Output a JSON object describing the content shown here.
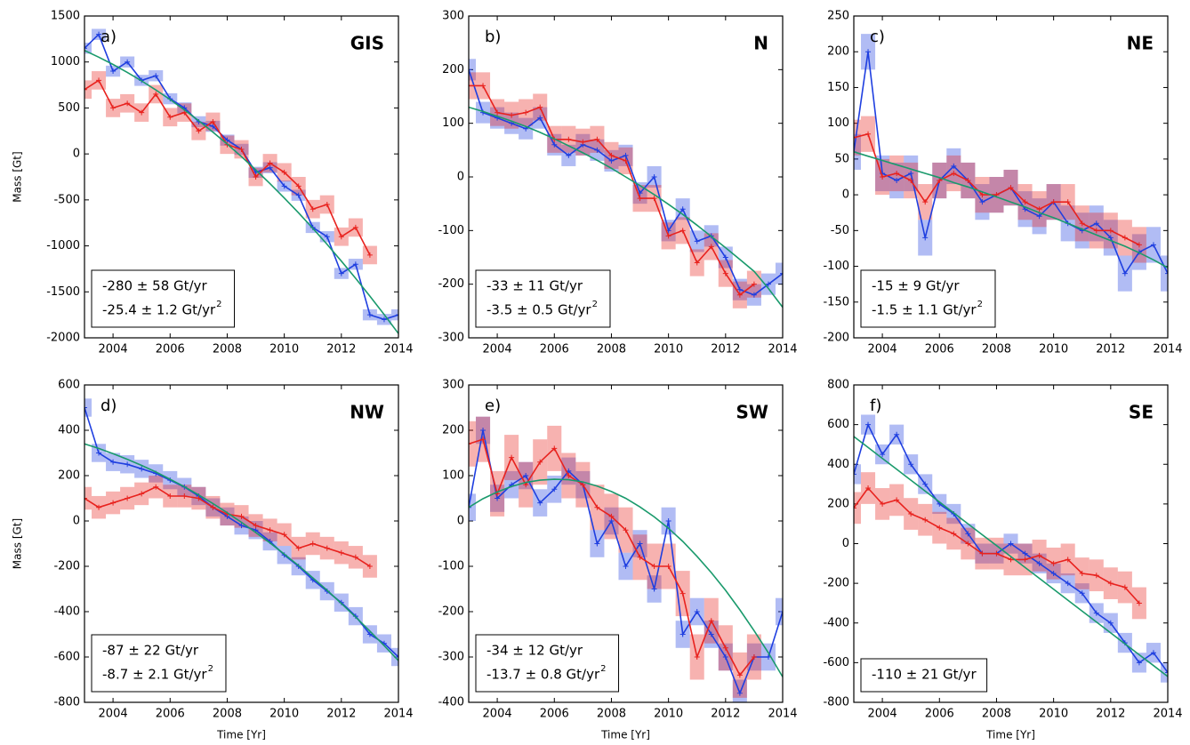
{
  "chart_data": [
    {
      "type": "line",
      "panel_label": "a)",
      "title": "GIS",
      "ylabel": "Mass [Gt]",
      "x": [
        2003,
        2003.5,
        2004,
        2004.5,
        2005,
        2005.5,
        2006,
        2006.5,
        2007,
        2007.5,
        2008,
        2008.5,
        2009,
        2009.5,
        2010,
        2010.5,
        2011,
        2011.5,
        2012,
        2012.5,
        2013,
        2013.5,
        2014
      ],
      "xlim": [
        2003,
        2014
      ],
      "xticks": [
        2004,
        2006,
        2008,
        2010,
        2012,
        2014
      ],
      "ylim": [
        -2000,
        1500
      ],
      "yticks": [
        -2000,
        -1500,
        -1000,
        -500,
        0,
        500,
        1000,
        1500
      ],
      "series": [
        {
          "color": "#1f3fe0",
          "error": 60,
          "values": [
            1150,
            1300,
            900,
            1000,
            800,
            850,
            600,
            500,
            350,
            300,
            150,
            50,
            -200,
            -150,
            -350,
            -450,
            -800,
            -900,
            -1300,
            -1200,
            -1750,
            -1800,
            -1750
          ]
        },
        {
          "color": "#e8221e",
          "error": 100,
          "values": [
            700,
            800,
            500,
            550,
            450,
            650,
            400,
            450,
            250,
            350,
            100,
            50,
            -250,
            -100,
            -200,
            -350,
            -600,
            -550,
            -900,
            -800,
            -1100,
            null,
            null
          ]
        },
        {
          "color": "#1a9a6c",
          "values": [
            1126,
            1052,
            973,
            887,
            794,
            696,
            591,
            479,
            361,
            237,
            107,
            -30,
            -173,
            -323,
            -479,
            -641,
            -809,
            -984,
            -1166,
            -1353,
            -1547,
            -1748,
            -1954
          ]
        }
      ],
      "annotations": [
        {
          "text": "-280 ± 58 Gt/yr"
        },
        {
          "text": "-25.4 ± 1.2 Gt/yr",
          "sup": "2"
        }
      ]
    },
    {
      "type": "line",
      "panel_label": "b)",
      "title": "N",
      "x": [
        2003,
        2003.5,
        2004,
        2004.5,
        2005,
        2005.5,
        2006,
        2006.5,
        2007,
        2007.5,
        2008,
        2008.5,
        2009,
        2009.5,
        2010,
        2010.5,
        2011,
        2011.5,
        2012,
        2012.5,
        2013,
        2013.5,
        2014
      ],
      "xlim": [
        2003,
        2014
      ],
      "xticks": [
        2004,
        2006,
        2008,
        2010,
        2012,
        2014
      ],
      "ylim": [
        -300,
        300
      ],
      "yticks": [
        -300,
        -200,
        -100,
        0,
        100,
        200,
        300
      ],
      "series": [
        {
          "color": "#1f3fe0",
          "error": 20,
          "values": [
            200,
            120,
            110,
            100,
            90,
            110,
            60,
            40,
            60,
            50,
            30,
            40,
            -30,
            0,
            -100,
            -60,
            -120,
            -110,
            -150,
            -210,
            -220,
            -200,
            -180
          ]
        },
        {
          "color": "#e8221e",
          "error": 25,
          "values": [
            170,
            170,
            120,
            115,
            120,
            130,
            70,
            70,
            65,
            70,
            40,
            30,
            -40,
            -40,
            -110,
            -100,
            -160,
            -130,
            -180,
            -220,
            -200,
            null,
            null
          ]
        },
        {
          "color": "#1a9a6c",
          "values": [
            130,
            122,
            113,
            104,
            94,
            83,
            71,
            58,
            45,
            31,
            16,
            0,
            -16,
            -33,
            -51,
            -70,
            -90,
            -111,
            -132,
            -154,
            -176,
            -208,
            -243
          ]
        }
      ],
      "annotations": [
        {
          "text": "-33 ± 11 Gt/yr"
        },
        {
          "text": "-3.5 ± 0.5 Gt/yr",
          "sup": "2"
        }
      ]
    },
    {
      "type": "line",
      "panel_label": "c)",
      "title": "NE",
      "x": [
        2003,
        2003.5,
        2004,
        2004.5,
        2005,
        2005.5,
        2006,
        2006.5,
        2007,
        2007.5,
        2008,
        2008.5,
        2009,
        2009.5,
        2010,
        2010.5,
        2011,
        2011.5,
        2012,
        2012.5,
        2013,
        2013.5,
        2014
      ],
      "xlim": [
        2003,
        2014
      ],
      "xticks": [
        2004,
        2006,
        2008,
        2010,
        2012,
        2014
      ],
      "ylim": [
        -200,
        250
      ],
      "yticks": [
        -200,
        -150,
        -100,
        -50,
        0,
        50,
        100,
        150,
        200,
        250
      ],
      "series": [
        {
          "color": "#1f3fe0",
          "error": 25,
          "values": [
            60,
            200,
            30,
            20,
            30,
            -60,
            20,
            40,
            20,
            -10,
            0,
            10,
            -20,
            -30,
            -10,
            -40,
            -50,
            -40,
            -60,
            -110,
            -80,
            -70,
            -110
          ]
        },
        {
          "color": "#e8221e",
          "error": 25,
          "values": [
            80,
            85,
            25,
            30,
            20,
            -10,
            20,
            30,
            20,
            0,
            0,
            10,
            -10,
            -20,
            -10,
            -10,
            -40,
            -50,
            -50,
            -60,
            -70,
            null,
            null
          ]
        },
        {
          "color": "#1a9a6c",
          "values": [
            60,
            54,
            48,
            42,
            36,
            30,
            24,
            17,
            11,
            4,
            -3,
            -10,
            -17,
            -25,
            -32,
            -40,
            -48,
            -56,
            -64,
            -72,
            -81,
            -91,
            -102
          ]
        }
      ],
      "annotations": [
        {
          "text": "-15 ±  9 Gt/yr"
        },
        {
          "text": "-1.5 ± 1.1 Gt/yr",
          "sup": "2"
        }
      ]
    },
    {
      "type": "line",
      "panel_label": "d)",
      "title": "NW",
      "ylabel": "Mass [Gt]",
      "xlabel": "Time [Yr]",
      "x": [
        2003,
        2003.5,
        2004,
        2004.5,
        2005,
        2005.5,
        2006,
        2006.5,
        2007,
        2007.5,
        2008,
        2008.5,
        2009,
        2009.5,
        2010,
        2010.5,
        2011,
        2011.5,
        2012,
        2012.5,
        2013,
        2013.5,
        2014
      ],
      "xlim": [
        2003,
        2014
      ],
      "xticks": [
        2004,
        2006,
        2008,
        2010,
        2012,
        2014
      ],
      "ylim": [
        -800,
        600
      ],
      "yticks": [
        -800,
        -600,
        -400,
        -200,
        0,
        200,
        400,
        600
      ],
      "series": [
        {
          "color": "#1f3fe0",
          "error": 40,
          "values": [
            500,
            300,
            260,
            250,
            230,
            210,
            180,
            150,
            110,
            60,
            20,
            -20,
            -40,
            -90,
            -150,
            -200,
            -260,
            -310,
            -360,
            -420,
            -500,
            -540,
            -600
          ]
        },
        {
          "color": "#e8221e",
          "error": 50,
          "values": [
            100,
            60,
            80,
            100,
            120,
            150,
            110,
            110,
            100,
            60,
            30,
            20,
            -20,
            -40,
            -60,
            -120,
            -100,
            -120,
            -140,
            -160,
            -200,
            null,
            null
          ]
        },
        {
          "color": "#1a9a6c",
          "values": [
            340,
            320,
            297,
            272,
            245,
            216,
            184,
            151,
            115,
            77,
            36,
            -6,
            -51,
            -97,
            -146,
            -197,
            -251,
            -306,
            -364,
            -424,
            -486,
            -550,
            -616
          ]
        }
      ],
      "annotations": [
        {
          "text": "-87 ± 22 Gt/yr"
        },
        {
          "text": "-8.7 ± 2.1 Gt/yr",
          "sup": "2"
        }
      ]
    },
    {
      "type": "line",
      "panel_label": "e)",
      "title": "SW",
      "xlabel": "Time [Yr]",
      "x": [
        2003,
        2003.5,
        2004,
        2004.5,
        2005,
        2005.5,
        2006,
        2006.5,
        2007,
        2007.5,
        2008,
        2008.5,
        2009,
        2009.5,
        2010,
        2010.5,
        2011,
        2011.5,
        2012,
        2012.5,
        2013,
        2013.5,
        2014
      ],
      "xlim": [
        2003,
        2014
      ],
      "xticks": [
        2004,
        2006,
        2008,
        2010,
        2012,
        2014
      ],
      "ylim": [
        -400,
        300
      ],
      "yticks": [
        -400,
        -300,
        -200,
        -100,
        0,
        100,
        200,
        300
      ],
      "series": [
        {
          "color": "#1f3fe0",
          "error": 30,
          "values": [
            30,
            200,
            50,
            80,
            100,
            40,
            70,
            110,
            80,
            -50,
            0,
            -100,
            -50,
            -150,
            0,
            -250,
            -200,
            -250,
            -300,
            -380,
            -300,
            -300,
            -200
          ]
        },
        {
          "color": "#e8221e",
          "error": 50,
          "values": [
            170,
            180,
            60,
            140,
            80,
            130,
            160,
            100,
            80,
            30,
            10,
            -20,
            -80,
            -100,
            -100,
            -160,
            -300,
            -220,
            -280,
            -340,
            -300,
            null,
            null
          ]
        },
        {
          "color": "#1a9a6c",
          "values": [
            30,
            49,
            64,
            76,
            85,
            90,
            92,
            91,
            86,
            77,
            65,
            50,
            31,
            9,
            -16,
            -45,
            -78,
            -114,
            -153,
            -196,
            -242,
            -291,
            -344
          ]
        }
      ],
      "annotations": [
        {
          "text": "-34 ± 12 Gt/yr"
        },
        {
          "text": "-13.7 ± 0.8 Gt/yr",
          "sup": "2"
        }
      ]
    },
    {
      "type": "line",
      "panel_label": "f)",
      "title": "SE",
      "xlabel": "Time [Yr]",
      "x": [
        2003,
        2003.5,
        2004,
        2004.5,
        2005,
        2005.5,
        2006,
        2006.5,
        2007,
        2007.5,
        2008,
        2008.5,
        2009,
        2009.5,
        2010,
        2010.5,
        2011,
        2011.5,
        2012,
        2012.5,
        2013,
        2013.5,
        2014
      ],
      "xlim": [
        2003,
        2014
      ],
      "xticks": [
        2004,
        2006,
        2008,
        2010,
        2012,
        2014
      ],
      "ylim": [
        -800,
        800
      ],
      "yticks": [
        -800,
        -600,
        -400,
        -200,
        0,
        200,
        400,
        600,
        800
      ],
      "series": [
        {
          "color": "#1f3fe0",
          "error": 50,
          "values": [
            350,
            600,
            450,
            550,
            400,
            300,
            200,
            150,
            50,
            -50,
            -50,
            0,
            -50,
            -100,
            -150,
            -200,
            -250,
            -350,
            -400,
            -500,
            -600,
            -550,
            -650
          ]
        },
        {
          "color": "#e8221e",
          "error": 80,
          "values": [
            180,
            280,
            200,
            220,
            150,
            120,
            80,
            50,
            0,
            -50,
            -50,
            -80,
            -80,
            -60,
            -100,
            -80,
            -150,
            -160,
            -200,
            -220,
            -300,
            null,
            null
          ]
        },
        {
          "color": "#1a9a6c",
          "values": [
            540,
            485,
            430,
            375,
            320,
            265,
            210,
            155,
            100,
            45,
            -10,
            -65,
            -120,
            -175,
            -230,
            -285,
            -340,
            -395,
            -450,
            -505,
            -560,
            -615,
            -670
          ]
        }
      ],
      "annotations": [
        {
          "text": "-110 ± 21 Gt/yr"
        }
      ]
    }
  ]
}
